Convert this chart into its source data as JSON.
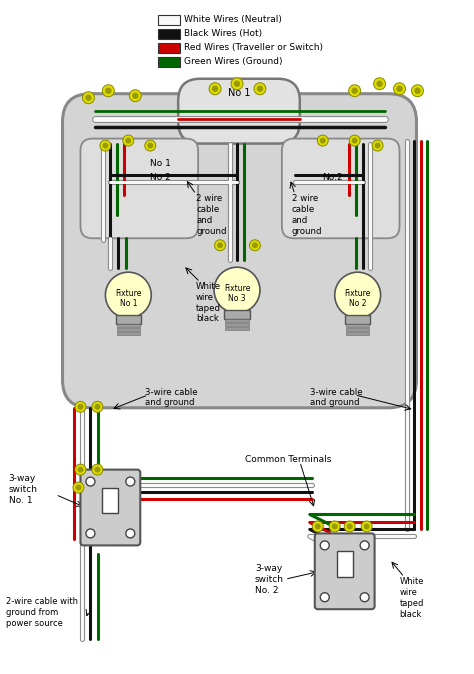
{
  "bg": "#ffffff",
  "wire_white": "#f8f8f8",
  "wire_black": "#111111",
  "wire_red": "#cc0000",
  "wire_green": "#006600",
  "wire_outline": "#888888",
  "connector_outer": "#dddd00",
  "connector_inner": "#999900",
  "box_fill": "#d8d8d8",
  "box_edge": "#888888",
  "bulb_fill": "#ffffc8",
  "switch_fill": "#cccccc",
  "legend_items": [
    {
      "label": "White Wires (Neutral)",
      "color": "#f8f8f8"
    },
    {
      "label": "Black Wires (Hot)",
      "color": "#111111"
    },
    {
      "label": "Red Wires (Traveller or Switch)",
      "color": "#cc0000"
    },
    {
      "label": "Green Wires (Ground)",
      "color": "#006600"
    }
  ]
}
